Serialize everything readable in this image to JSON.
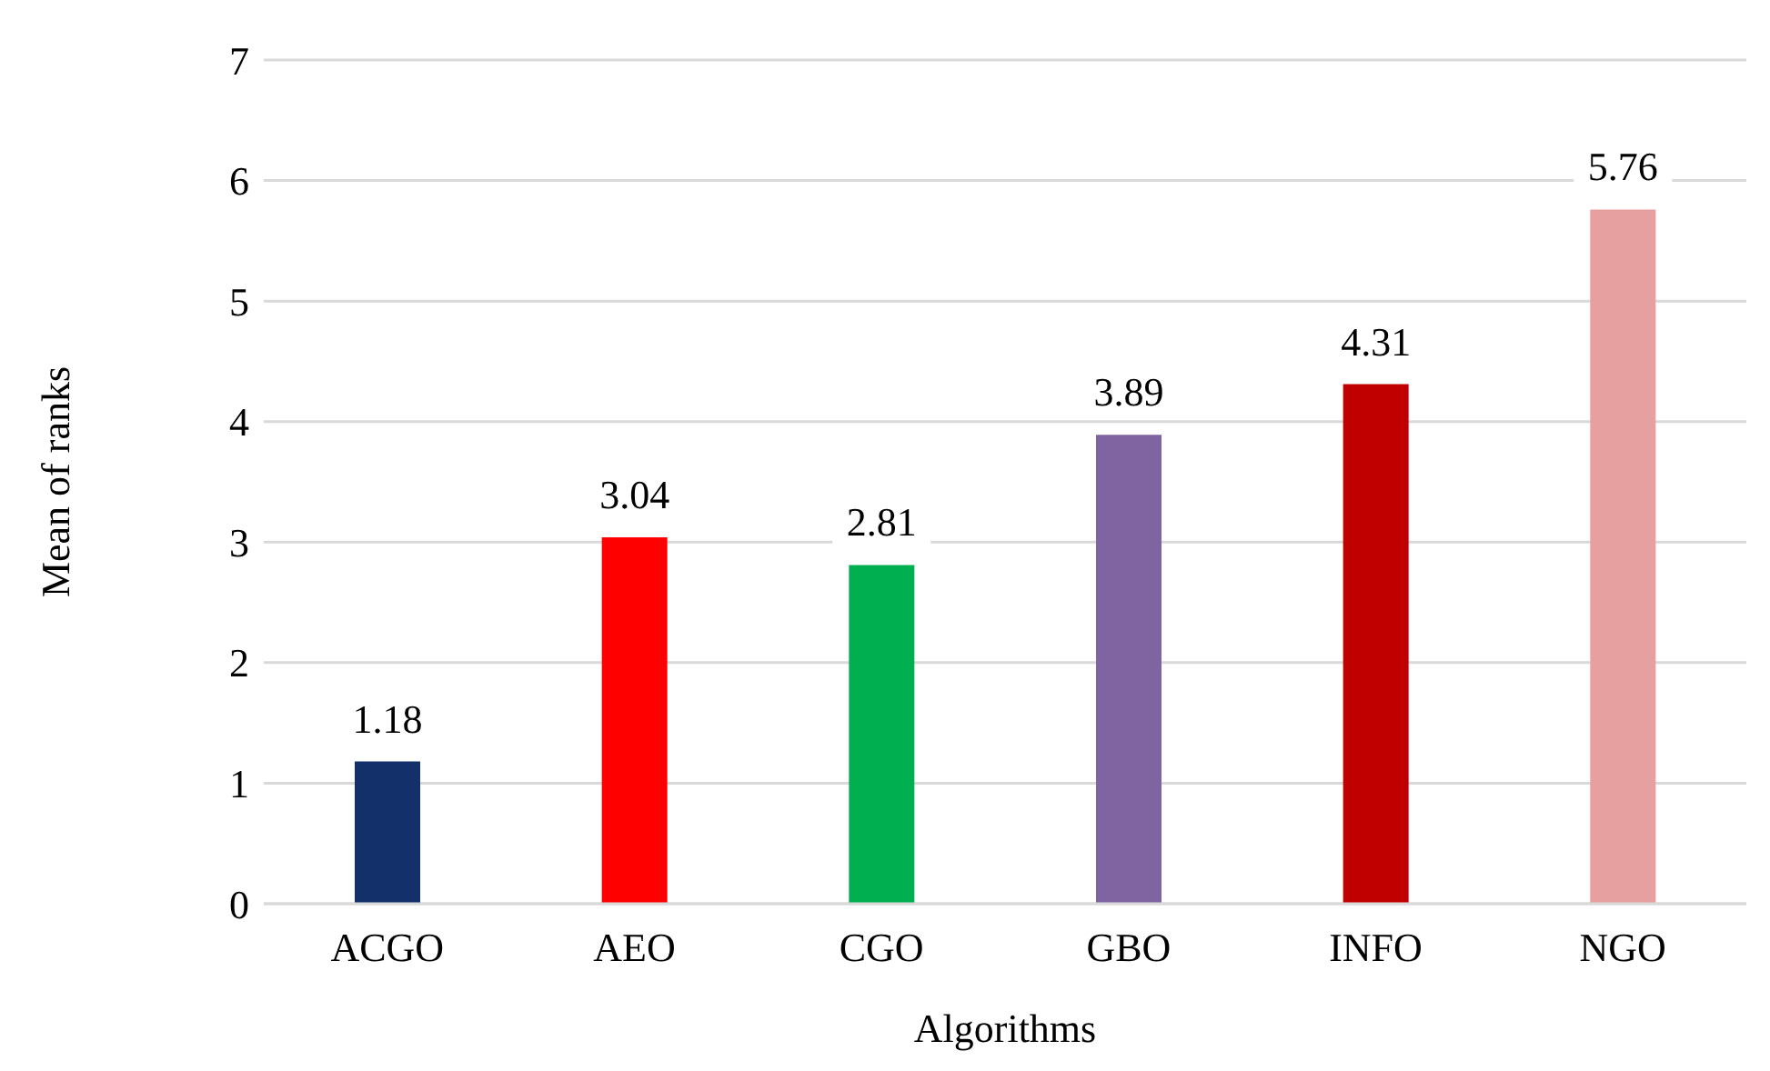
{
  "chart_data": {
    "type": "bar",
    "xlabel": "Algorithms",
    "ylabel": "Mean of ranks",
    "categories": [
      "ACGO",
      "AEO",
      "CGO",
      "GBO",
      "INFO",
      "NGO"
    ],
    "values": [
      1.18,
      3.04,
      2.81,
      3.89,
      4.31,
      5.76
    ],
    "colors": [
      "#13306b",
      "#ff0000",
      "#00b050",
      "#8064a2",
      "#c00000",
      "#e6a0a0"
    ],
    "ylim": [
      0,
      7
    ],
    "yticks": [
      0,
      1,
      2,
      3,
      4,
      5,
      6,
      7
    ],
    "grid": "y",
    "data_labels": true
  }
}
